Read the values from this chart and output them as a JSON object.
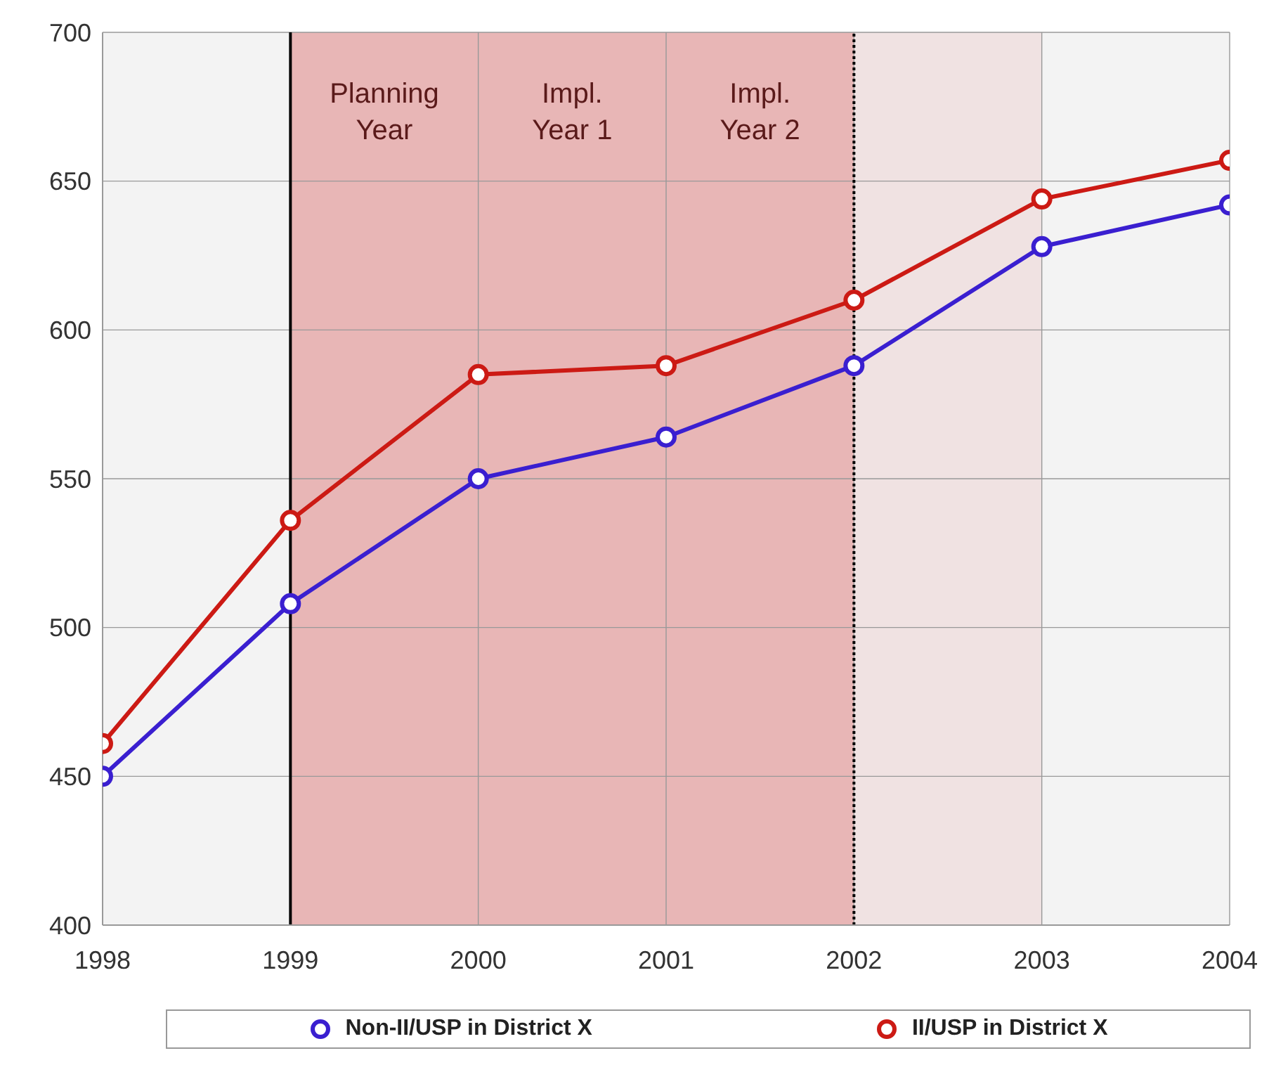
{
  "chart_data": {
    "type": "line",
    "x": [
      1998,
      1999,
      2000,
      2001,
      2002,
      2003,
      2004
    ],
    "series": [
      {
        "name": "Non-II/USP in District X",
        "color": "#3a1fd0",
        "values": [
          450,
          508,
          550,
          564,
          588,
          628,
          642
        ]
      },
      {
        "name": "II/USP in District X",
        "color": "#cc1a14",
        "values": [
          461,
          536,
          585,
          588,
          610,
          644,
          657
        ]
      }
    ],
    "xlim": [
      1998,
      2004
    ],
    "xticks": [
      1998,
      1999,
      2000,
      2001,
      2002,
      2003,
      2004
    ],
    "ylim": [
      400,
      700
    ],
    "yticks": [
      400,
      450,
      500,
      550,
      600,
      650,
      700
    ],
    "bands": [
      {
        "axis": "x",
        "from": 1999,
        "to": 2000,
        "label": "Planning Year",
        "color": "#e8b6b6"
      },
      {
        "axis": "x",
        "from": 2000,
        "to": 2001,
        "label": "Impl. Year 1",
        "color": "#e8b6b6"
      },
      {
        "axis": "x",
        "from": 2001,
        "to": 2002,
        "label": "Impl. Year 2",
        "color": "#e8b6b6"
      },
      {
        "axis": "x",
        "from": 2002,
        "to": 2003,
        "color": "#f0e2e2"
      }
    ],
    "ref_lines": [
      {
        "axis": "x",
        "value": 1999,
        "color": "#000000",
        "line_style": "solid"
      },
      {
        "axis": "x",
        "value": 2002,
        "color": "#000000",
        "line_style": "dotted"
      }
    ],
    "grid": true,
    "legend": "bottom",
    "marker": "circle",
    "line_style": "solid"
  }
}
